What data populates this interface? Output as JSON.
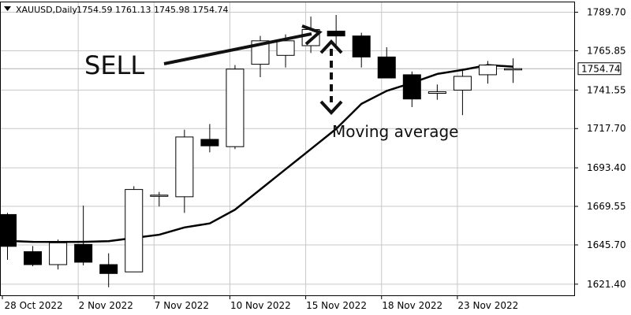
{
  "header": {
    "symbol": "XAUUSD,Daily",
    "ohlc": "1754.59 1761.13 1745.98 1754.74",
    "triangle_icon": "down-triangle-icon"
  },
  "current_price_label": "1754.74",
  "annotations": {
    "sell": "SELL",
    "moving_average": "Moving average"
  },
  "chart_data": {
    "type": "candlestick",
    "symbol": "XAUUSD",
    "timeframe": "Daily",
    "y_ticks": [
      "1789.70",
      "1765.85",
      "1741.55",
      "1717.70",
      "1693.40",
      "1669.55",
      "1645.70",
      "1621.40"
    ],
    "x_tick_labels": [
      "28 Oct 2022",
      "2 Nov 2022",
      "7 Nov 2022",
      "10 Nov 2022",
      "15 Nov 2022",
      "18 Nov 2022",
      "23 Nov 2022"
    ],
    "ylim": [
      1614.5,
      1795.8
    ],
    "current_price": 1754.74,
    "colors": {
      "bull_fill": "#ffffff",
      "bear_fill": "#000000",
      "line": "#000000",
      "grid": "#c8c8c8"
    },
    "candles": [
      {
        "open": 1664.5,
        "high": 1665.5,
        "low": 1636.5,
        "close": 1644.8
      },
      {
        "open": 1641.5,
        "high": 1645.0,
        "low": 1632.5,
        "close": 1633.5
      },
      {
        "open": 1633.5,
        "high": 1649.0,
        "low": 1630.5,
        "close": 1647.0
      },
      {
        "open": 1646.0,
        "high": 1670.0,
        "low": 1633.0,
        "close": 1635.0
      },
      {
        "open": 1633.5,
        "high": 1640.5,
        "low": 1619.5,
        "close": 1628.0
      },
      {
        "open": 1629.0,
        "high": 1682.0,
        "low": 1629.0,
        "close": 1680.0
      },
      {
        "open": 1676.0,
        "high": 1678.5,
        "low": 1669.5,
        "close": 1676.5
      },
      {
        "open": 1675.5,
        "high": 1717.0,
        "low": 1665.5,
        "close": 1712.5
      },
      {
        "open": 1711.0,
        "high": 1720.5,
        "low": 1703.0,
        "close": 1707.0
      },
      {
        "open": 1706.5,
        "high": 1757.0,
        "low": 1705.0,
        "close": 1754.5
      },
      {
        "open": 1757.5,
        "high": 1775.0,
        "low": 1749.5,
        "close": 1772.0
      },
      {
        "open": 1763.0,
        "high": 1776.0,
        "low": 1755.5,
        "close": 1772.0
      },
      {
        "open": 1769.0,
        "high": 1787.0,
        "low": 1764.5,
        "close": 1779.0
      },
      {
        "open": 1778.0,
        "high": 1788.0,
        "low": 1768.0,
        "close": 1775.0
      },
      {
        "open": 1775.0,
        "high": 1777.0,
        "low": 1755.5,
        "close": 1762.0
      },
      {
        "open": 1762.0,
        "high": 1768.0,
        "low": 1749.0,
        "close": 1749.0
      },
      {
        "open": 1751.0,
        "high": 1753.0,
        "low": 1731.0,
        "close": 1736.0
      },
      {
        "open": 1739.5,
        "high": 1745.0,
        "low": 1735.5,
        "close": 1740.5
      },
      {
        "open": 1741.5,
        "high": 1754.5,
        "low": 1726.0,
        "close": 1750.0
      },
      {
        "open": 1751.0,
        "high": 1759.5,
        "low": 1745.5,
        "close": 1757.0
      },
      {
        "open": 1754.59,
        "high": 1761.13,
        "low": 1745.98,
        "close": 1754.74
      }
    ],
    "moving_average": [
      1648.2,
      1647.6,
      1647.5,
      1647.6,
      1648.0,
      1650.0,
      1652.0,
      1656.5,
      1659.0,
      1667.5,
      1680.0,
      1692.5,
      1705.0,
      1717.5,
      1733.0,
      1741.0,
      1746.0,
      1751.5,
      1754.0,
      1757.0,
      1756.0
    ]
  }
}
